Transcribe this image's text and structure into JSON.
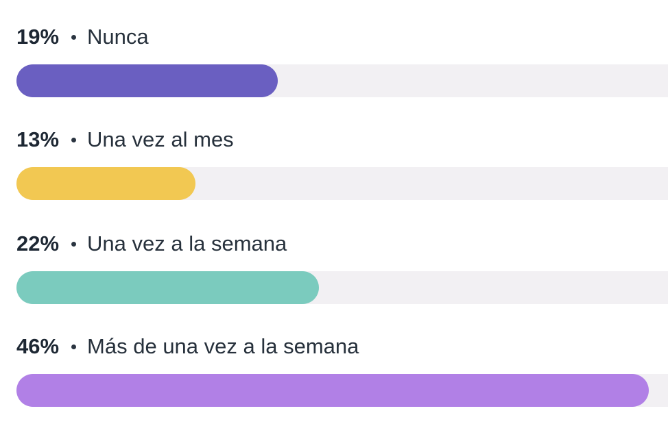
{
  "chart_data": {
    "type": "bar",
    "orientation": "horizontal",
    "categories": [
      "Nunca",
      "Una vez al mes",
      "Una vez a la semana",
      "Más de una vez a la semana"
    ],
    "values": [
      19,
      13,
      22,
      46
    ],
    "value_labels": [
      "19%",
      "13%",
      "22%",
      "46%"
    ],
    "unit": "%",
    "colors": [
      "#6a5fc1",
      "#f2c852",
      "#7bcbbe",
      "#b180e6"
    ],
    "track_color": "#f2f0f3",
    "xlim": [
      0,
      100
    ]
  }
}
